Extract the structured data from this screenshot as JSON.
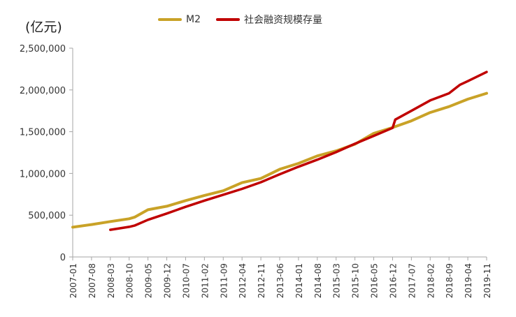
{
  "chart_data": {
    "type": "line",
    "unit_label": "(亿元)",
    "legend_position": "top",
    "grid": false,
    "ylim": [
      0,
      2500000
    ],
    "yticks": [
      0,
      500000,
      1000000,
      1500000,
      2000000,
      2500000
    ],
    "ytick_labels": [
      "0",
      "500,000",
      "1,000,000",
      "1,500,000",
      "2,000,000",
      "2,500,000"
    ],
    "xlim": [
      "2007-01",
      "2019-11"
    ],
    "xtick_labels": [
      "2007-01",
      "2007-08",
      "2008-03",
      "2008-10",
      "2009-05",
      "2009-12",
      "2010-07",
      "2011-02",
      "2011-09",
      "2012-04",
      "2012-11",
      "2013-06",
      "2014-01",
      "2014-08",
      "2015-03",
      "2015-10",
      "2016-05",
      "2016-12",
      "2017-07",
      "2018-02",
      "2018-09",
      "2019-04",
      "2019-11"
    ],
    "series": [
      {
        "name": "M2",
        "color": "#C9A227",
        "x": [
          "2007-01",
          "2007-08",
          "2008-03",
          "2008-10",
          "2008-12",
          "2009-05",
          "2009-12",
          "2010-07",
          "2011-02",
          "2011-09",
          "2012-04",
          "2012-11",
          "2013-06",
          "2014-01",
          "2014-08",
          "2015-03",
          "2015-10",
          "2016-05",
          "2016-12",
          "2017-07",
          "2018-02",
          "2018-09",
          "2019-04",
          "2019-11"
        ],
        "values": [
          356000,
          388000,
          424000,
          457000,
          476000,
          565000,
          607000,
          675000,
          737000,
          793000,
          890000,
          940000,
          1050000,
          1120000,
          1210000,
          1270000,
          1350000,
          1480000,
          1550000,
          1630000,
          1730000,
          1800000,
          1890000,
          1960000
        ]
      },
      {
        "name": "社会融资规模存量",
        "color": "#C00000",
        "x": [
          "2008-03",
          "2008-10",
          "2008-12",
          "2009-05",
          "2009-12",
          "2010-07",
          "2011-02",
          "2011-09",
          "2012-04",
          "2012-11",
          "2013-06",
          "2014-01",
          "2014-08",
          "2015-03",
          "2015-10",
          "2016-05",
          "2016-12",
          "2017-01",
          "2017-07",
          "2018-02",
          "2018-09",
          "2019-01",
          "2019-04",
          "2019-11"
        ],
        "values": [
          325000,
          360000,
          375000,
          445000,
          520000,
          600000,
          675000,
          745000,
          815000,
          895000,
          990000,
          1080000,
          1165000,
          1255000,
          1355000,
          1450000,
          1545000,
          1645000,
          1750000,
          1875000,
          1960000,
          2060000,
          2105000,
          2215000
        ]
      }
    ]
  }
}
